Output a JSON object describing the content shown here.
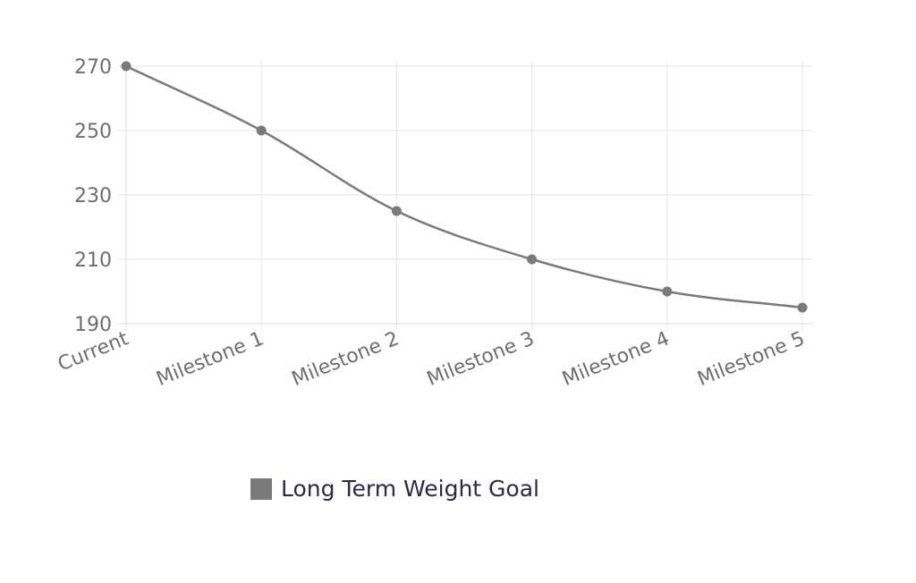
{
  "chart_data": {
    "type": "line",
    "categories": [
      "Current",
      "Milestone 1",
      "Milestone 2",
      "Milestone 3",
      "Milestone 4",
      "Milestone 5"
    ],
    "series": [
      {
        "name": "Long Term Weight Goal",
        "values": [
          270,
          250,
          225,
          210,
          200,
          195
        ]
      }
    ],
    "y_ticks": [
      "190",
      "210",
      "230",
      "250",
      "270"
    ],
    "ylim": [
      190,
      270
    ],
    "title": "",
    "xlabel": "",
    "ylabel": "",
    "grid": true,
    "legend_position": "bottom",
    "series_color": "#7a7a7a"
  },
  "legend": {
    "label": "Long Term Weight Goal",
    "color": "#7a7a7a"
  }
}
